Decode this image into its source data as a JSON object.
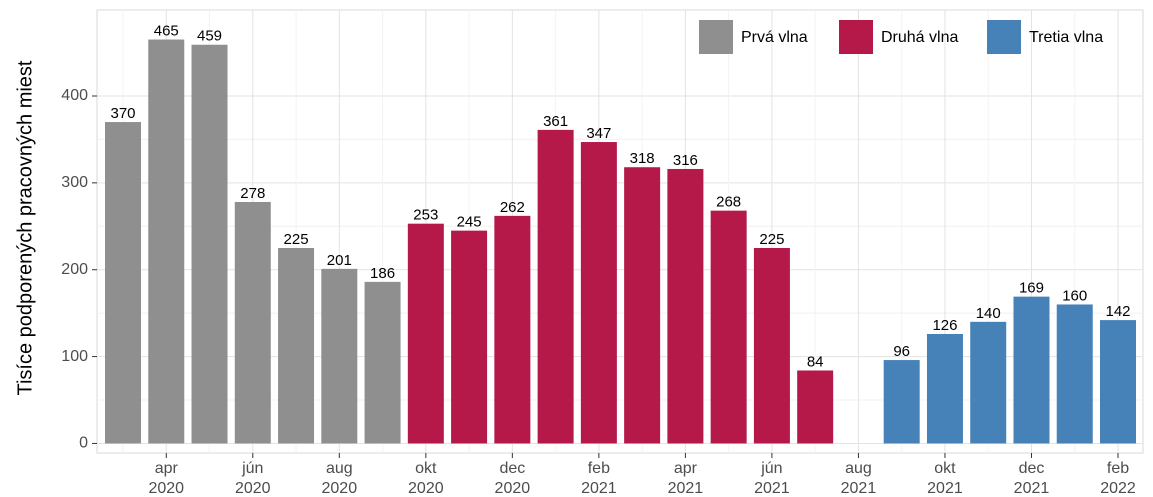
{
  "chart_data": {
    "type": "bar",
    "y_label": "Tisíce podporených pracovných miest",
    "categories": [
      null,
      "apr 2020",
      null,
      "jún 2020",
      null,
      "aug 2020",
      null,
      "okt 2020",
      null,
      "dec 2020",
      null,
      "feb 2021",
      null,
      "apr 2021",
      null,
      "jún 2021",
      null,
      "aug 2021",
      null,
      "okt 2021",
      null,
      "dec 2021",
      null,
      "feb 2022"
    ],
    "series": [
      {
        "name": "Prvá vlna",
        "color": "#8f8f8f",
        "values": [
          370,
          465,
          459,
          278,
          225,
          201,
          186,
          null,
          null,
          null,
          null,
          null,
          null,
          null,
          null,
          null,
          null,
          null,
          null,
          null,
          null,
          null,
          null,
          null
        ]
      },
      {
        "name": "Druhá vlna",
        "color": "#b5194a",
        "values": [
          null,
          null,
          null,
          null,
          null,
          null,
          null,
          253,
          245,
          262,
          361,
          347,
          318,
          316,
          268,
          225,
          84,
          null,
          null,
          null,
          null,
          null,
          null,
          null
        ]
      },
      {
        "name": "Tretia vlna",
        "color": "#4682b8",
        "values": [
          null,
          null,
          null,
          null,
          null,
          null,
          null,
          null,
          null,
          null,
          null,
          null,
          null,
          null,
          null,
          null,
          null,
          null,
          96,
          126,
          140,
          169,
          160,
          142
        ]
      }
    ],
    "ylim": [
      -11,
      499
    ],
    "yticks": [
      0,
      100,
      200,
      300,
      400
    ],
    "grid": true,
    "legend": "top-right"
  }
}
